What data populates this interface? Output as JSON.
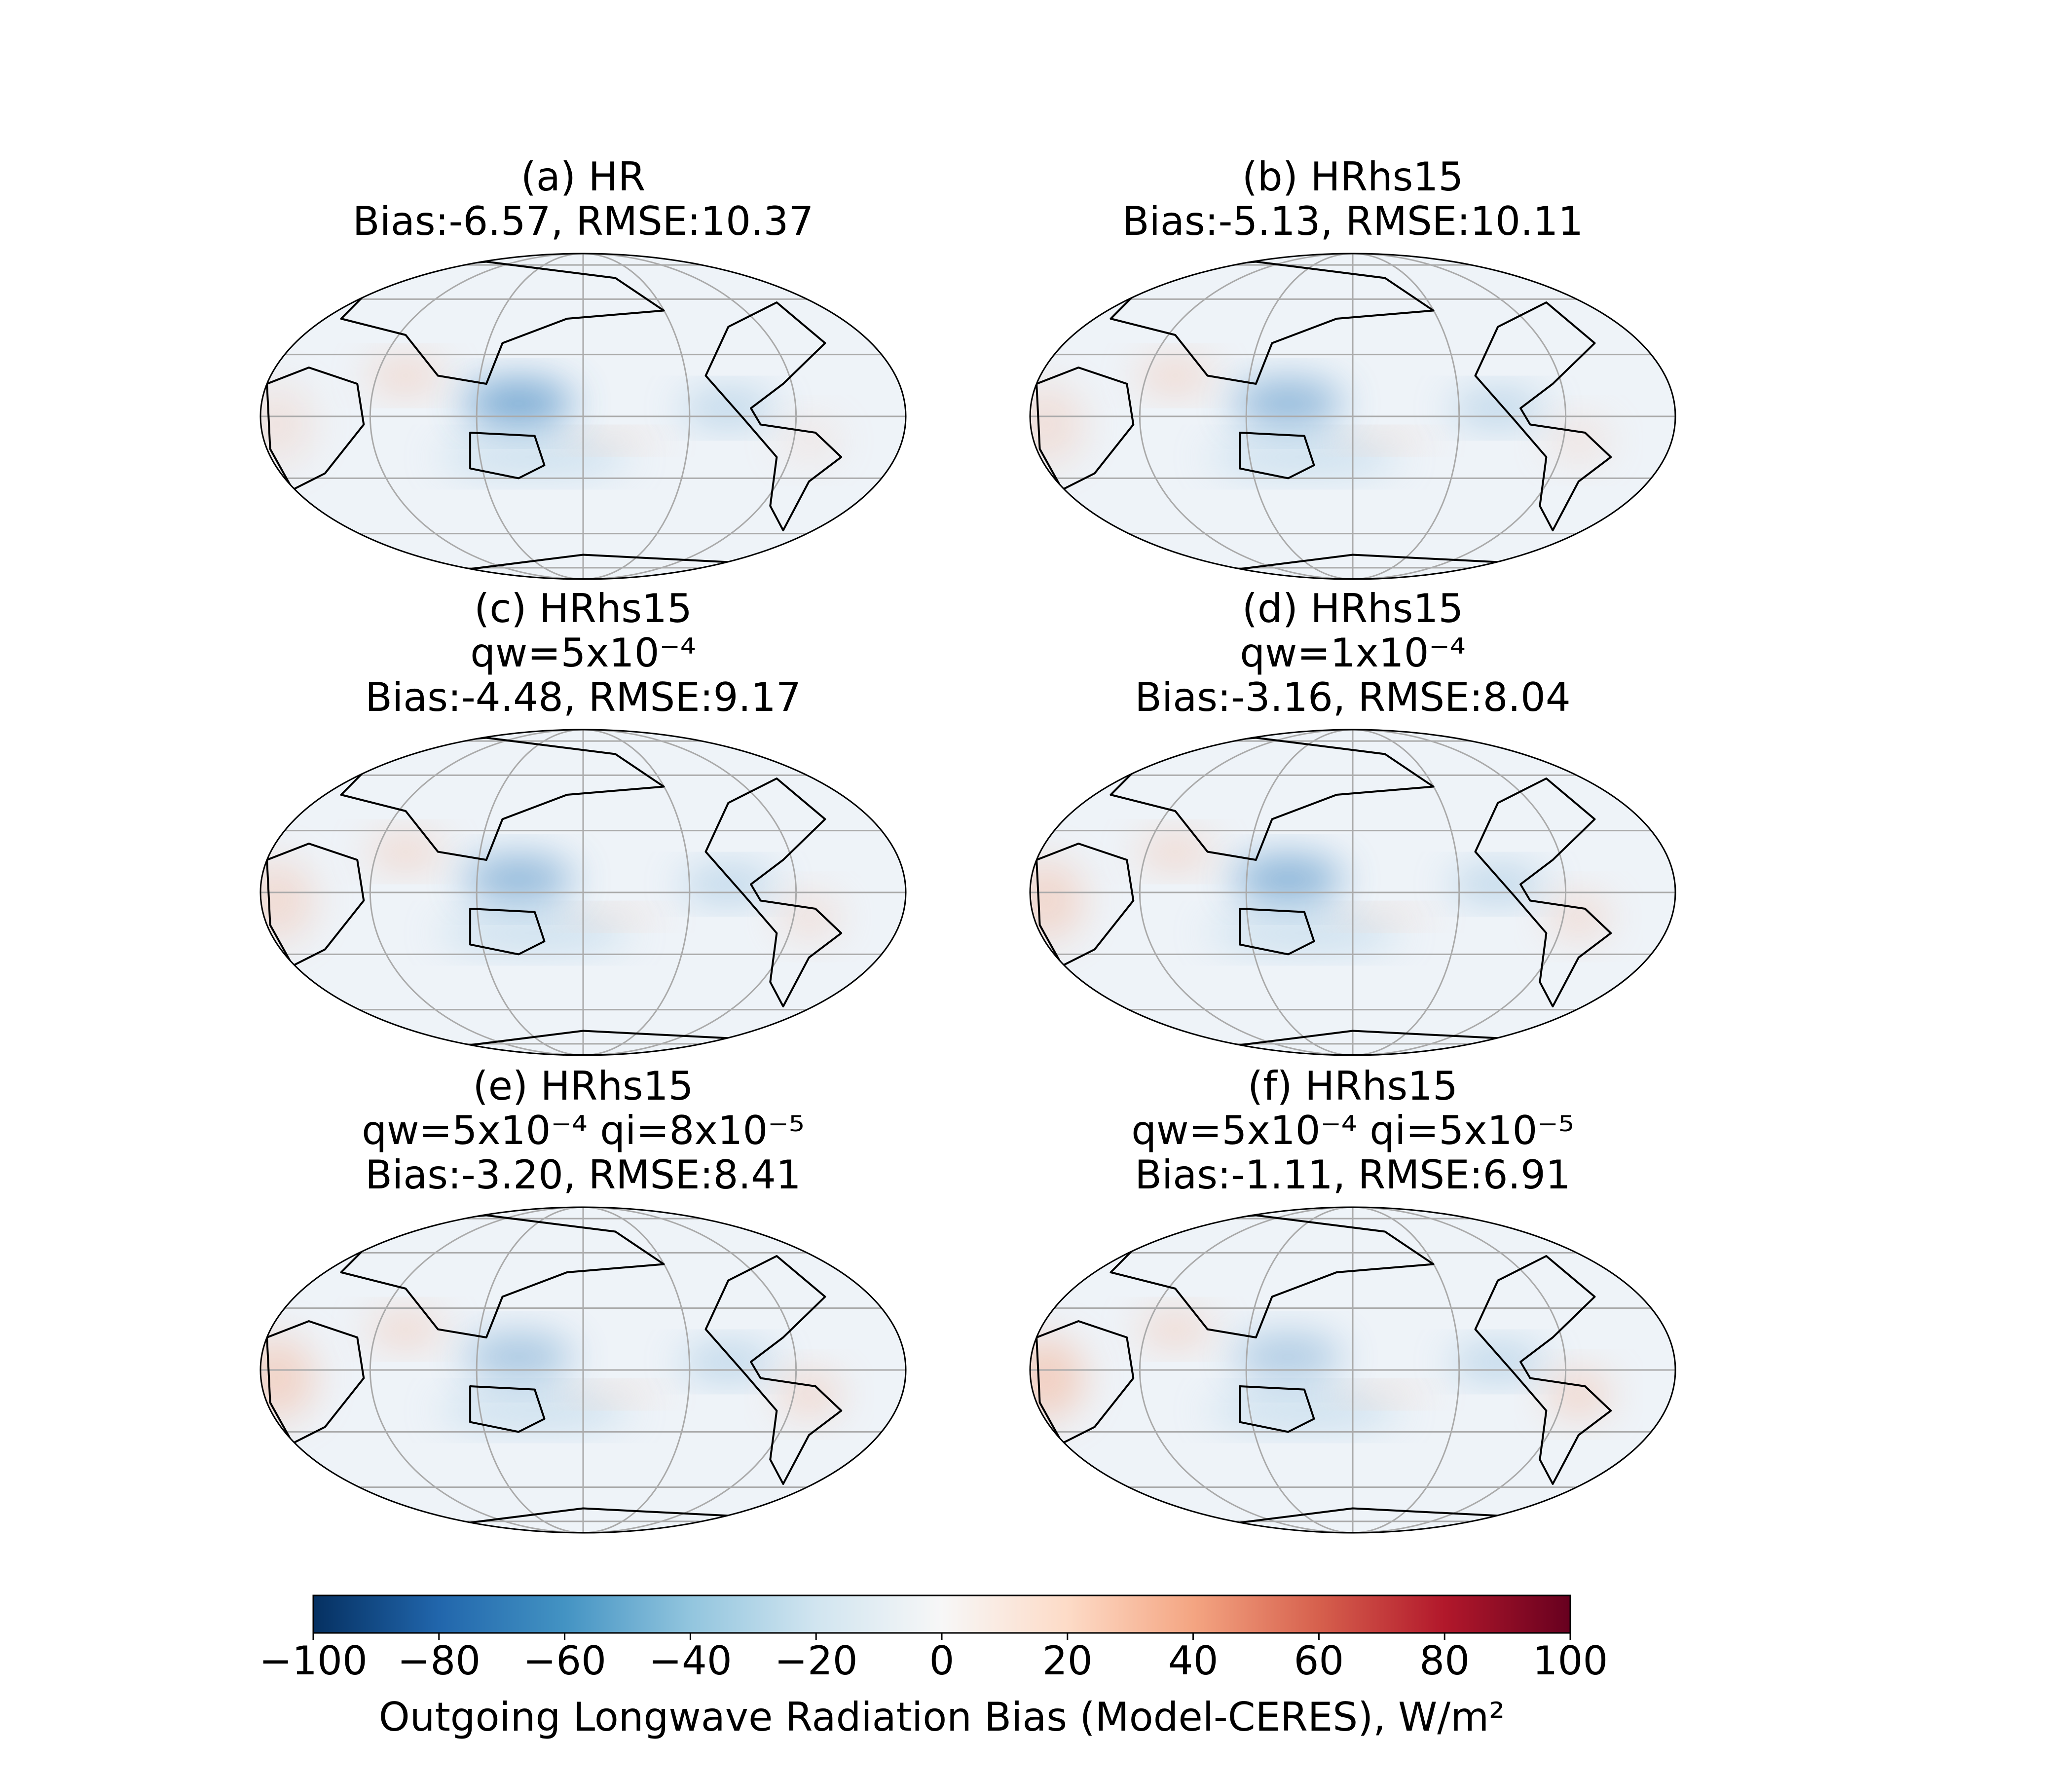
{
  "chart_data": {
    "type": "map-panels",
    "panels": [
      {
        "title_lines": [
          "(a) HR",
          "Bias:-6.57, RMSE:10.37"
        ]
      },
      {
        "title_lines": [
          "(b) HRhs15",
          "Bias:-5.13, RMSE:10.11"
        ]
      },
      {
        "title_lines": [
          "(c) HRhs15",
          "qw=5x10⁻⁴",
          "Bias:-4.48, RMSE:9.17"
        ]
      },
      {
        "title_lines": [
          "(d) HRhs15",
          "qw=1x10⁻⁴",
          "Bias:-3.16, RMSE:8.04"
        ]
      },
      {
        "title_lines": [
          "(e) HRhs15",
          "qw=5x10⁻⁴ qi=8x10⁻⁵",
          "Bias:-3.20, RMSE:8.41"
        ]
      },
      {
        "title_lines": [
          "(f) HRhs15",
          "qw=5x10⁻⁴ qi=5x10⁻⁵",
          "Bias:-1.11, RMSE:6.91"
        ]
      }
    ],
    "colorbar": {
      "label": "Outgoing Longwave Radiation Bias (Model-CERES), W/m²",
      "clim": [
        -100,
        100
      ],
      "ticks": [
        {
          "value": -100,
          "label": "−100"
        },
        {
          "value": -80,
          "label": "−80"
        },
        {
          "value": -60,
          "label": "−60"
        },
        {
          "value": -40,
          "label": "−40"
        },
        {
          "value": -20,
          "label": "−20"
        },
        0,
        20,
        40,
        60,
        80,
        100
      ],
      "colors": [
        "#053061",
        "#2166ac",
        "#4393c3",
        "#92c5de",
        "#d1e5f0",
        "#f7f7f7",
        "#fddbc7",
        "#f4a582",
        "#d6604d",
        "#b2182b",
        "#67001f"
      ]
    }
  }
}
